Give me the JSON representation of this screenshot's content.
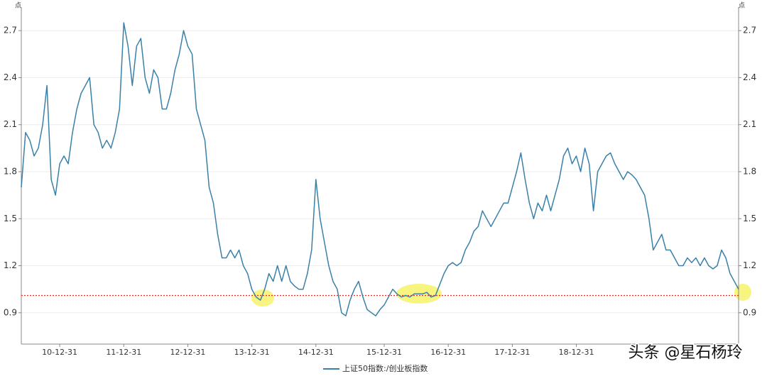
{
  "chart_data": {
    "type": "line",
    "y_label": "点",
    "legend": "bottom",
    "grid": true,
    "watermark": "头条 @星石杨玲",
    "reference_line": {
      "value": 1.01,
      "color": "#e0302a"
    },
    "ylim": [
      0.7,
      2.85
    ],
    "yticks": [
      0.9,
      1.2,
      1.5,
      1.8,
      2.1,
      2.4,
      2.7
    ],
    "categories": [
      null,
      null,
      null,
      null,
      null,
      null,
      null,
      null,
      null,
      "10-12-31",
      null,
      null,
      null,
      null,
      null,
      null,
      null,
      null,
      null,
      null,
      null,
      null,
      null,
      null,
      "11-12-31",
      null,
      null,
      null,
      null,
      null,
      null,
      null,
      null,
      null,
      null,
      null,
      null,
      null,
      null,
      "12-12-31",
      null,
      null,
      null,
      null,
      null,
      null,
      null,
      null,
      null,
      null,
      null,
      null,
      null,
      null,
      "13-12-31",
      null,
      null,
      null,
      null,
      null,
      null,
      null,
      null,
      null,
      null,
      null,
      null,
      null,
      null,
      "14-12-31",
      null,
      null,
      null,
      null,
      null,
      null,
      null,
      null,
      null,
      null,
      null,
      null,
      null,
      null,
      null,
      "15-12-31",
      null,
      null,
      null,
      null,
      null,
      null,
      null,
      null,
      null,
      null,
      null,
      null,
      null,
      null,
      "16-12-31",
      null,
      null,
      null,
      null,
      null,
      null,
      null,
      null,
      null,
      null,
      null,
      null,
      null,
      null,
      "17-12-31",
      null,
      null,
      null,
      null,
      null,
      null,
      null,
      null,
      null,
      null,
      null,
      null,
      null,
      null,
      "18-12-31",
      null,
      null,
      null,
      null,
      null,
      null,
      null,
      null,
      null,
      null,
      null,
      null,
      null,
      null,
      null,
      null,
      null,
      null,
      null,
      null,
      null,
      null,
      null,
      null,
      null,
      null,
      null,
      null,
      null,
      null,
      null,
      null,
      null,
      null,
      null,
      null,
      null,
      null
    ],
    "series": [
      {
        "name": "上证50指数:/创业板指数",
        "color": "#3a80a8",
        "values": [
          1.7,
          2.05,
          2.0,
          1.9,
          1.95,
          2.1,
          2.35,
          1.75,
          1.65,
          1.85,
          1.9,
          1.85,
          2.05,
          2.2,
          2.3,
          2.35,
          2.4,
          2.1,
          2.05,
          1.95,
          2.0,
          1.95,
          2.05,
          2.2,
          2.75,
          2.6,
          2.35,
          2.6,
          2.65,
          2.4,
          2.3,
          2.45,
          2.4,
          2.2,
          2.2,
          2.3,
          2.45,
          2.55,
          2.7,
          2.6,
          2.55,
          2.2,
          2.1,
          2.0,
          1.7,
          1.6,
          1.4,
          1.25,
          1.25,
          1.3,
          1.25,
          1.3,
          1.2,
          1.15,
          1.05,
          1.0,
          0.98,
          1.05,
          1.15,
          1.1,
          1.2,
          1.1,
          1.2,
          1.1,
          1.07,
          1.05,
          1.05,
          1.15,
          1.3,
          1.75,
          1.5,
          1.35,
          1.2,
          1.1,
          1.05,
          0.9,
          0.88,
          0.98,
          1.05,
          1.1,
          1.0,
          0.92,
          0.9,
          0.88,
          0.92,
          0.95,
          1.0,
          1.05,
          1.02,
          1.0,
          1.01,
          1.0,
          1.02,
          1.02,
          1.02,
          1.03,
          1.0,
          1.01,
          1.08,
          1.15,
          1.2,
          1.22,
          1.2,
          1.22,
          1.3,
          1.35,
          1.42,
          1.45,
          1.55,
          1.5,
          1.45,
          1.5,
          1.55,
          1.6,
          1.6,
          1.7,
          1.8,
          1.92,
          1.75,
          1.6,
          1.5,
          1.6,
          1.55,
          1.65,
          1.55,
          1.65,
          1.75,
          1.9,
          1.95,
          1.85,
          1.9,
          1.8,
          1.95,
          1.85,
          1.55,
          1.8,
          1.85,
          1.9,
          1.92,
          1.85,
          1.8,
          1.75,
          1.8,
          1.78,
          1.75,
          1.7,
          1.65,
          1.5,
          1.3,
          1.35,
          1.4,
          1.3,
          1.3,
          1.25,
          1.2,
          1.2,
          1.25,
          1.22,
          1.25,
          1.2,
          1.25,
          1.2,
          1.18,
          1.2,
          1.3,
          1.25,
          1.15,
          1.1,
          1.05
        ]
      }
    ]
  }
}
